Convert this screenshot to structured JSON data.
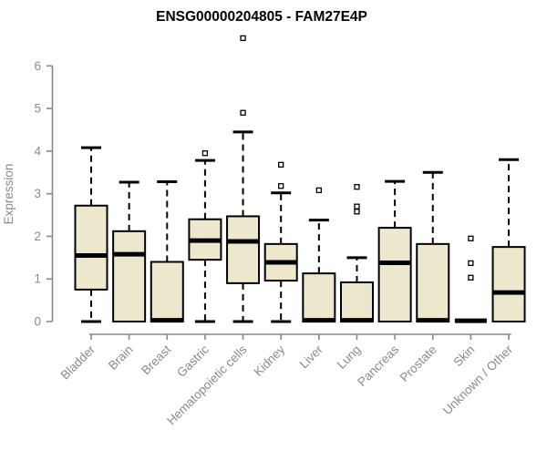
{
  "chart_data": {
    "type": "boxplot",
    "title": "ENSG00000204805 - FAM27E4P",
    "ylabel": "Expression",
    "xlabel": "",
    "ylim": [
      0,
      6
    ],
    "yticks": [
      0,
      1,
      2,
      3,
      4,
      5,
      6
    ],
    "grid": false,
    "legend": false,
    "categories": [
      "Bladder",
      "Brain",
      "Breast",
      "Gastric",
      "Hematopoietic cells",
      "Kidney",
      "Liver",
      "Lung",
      "Pancreas",
      "Prostate",
      "Skin",
      "Unknown / Other"
    ],
    "series": [
      {
        "category": "Bladder",
        "whisker_low": 0,
        "q1": 0.75,
        "median": 1.55,
        "q3": 2.72,
        "whisker_high": 4.08,
        "outliers": []
      },
      {
        "category": "Brain",
        "whisker_low": 0,
        "q1": 0,
        "median": 1.58,
        "q3": 2.12,
        "whisker_high": 3.27,
        "outliers": []
      },
      {
        "category": "Breast",
        "whisker_low": 0,
        "q1": 0,
        "median": 0.03,
        "q3": 1.4,
        "whisker_high": 3.28,
        "outliers": []
      },
      {
        "category": "Gastric",
        "whisker_low": 0,
        "q1": 1.45,
        "median": 1.9,
        "q3": 2.4,
        "whisker_high": 3.78,
        "outliers": [
          3.95
        ]
      },
      {
        "category": "Hematopoietic cells",
        "whisker_low": 0,
        "q1": 0.9,
        "median": 1.88,
        "q3": 2.47,
        "whisker_high": 4.45,
        "outliers": [
          4.9,
          6.65
        ]
      },
      {
        "category": "Kidney",
        "whisker_low": 0,
        "q1": 0.96,
        "median": 1.39,
        "q3": 1.82,
        "whisker_high": 3.02,
        "outliers": [
          3.18,
          3.68
        ]
      },
      {
        "category": "Liver",
        "whisker_low": 0,
        "q1": 0,
        "median": 0.03,
        "q3": 1.13,
        "whisker_high": 2.38,
        "outliers": [
          3.08
        ]
      },
      {
        "category": "Lung",
        "whisker_low": 0,
        "q1": 0,
        "median": 0.03,
        "q3": 0.92,
        "whisker_high": 1.5,
        "outliers": [
          2.58,
          2.7,
          3.16
        ]
      },
      {
        "category": "Pancreas",
        "whisker_low": 0,
        "q1": 0,
        "median": 1.38,
        "q3": 2.2,
        "whisker_high": 3.29,
        "outliers": []
      },
      {
        "category": "Prostate",
        "whisker_low": 0,
        "q1": 0,
        "median": 0.03,
        "q3": 1.82,
        "whisker_high": 3.5,
        "outliers": []
      },
      {
        "category": "Skin",
        "whisker_low": 0,
        "q1": 0,
        "median": 0.02,
        "q3": 0,
        "whisker_high": 0,
        "outliers": [
          1.03,
          1.37,
          1.95
        ]
      },
      {
        "category": "Unknown / Other",
        "whisker_low": 0,
        "q1": 0,
        "median": 0.68,
        "q3": 1.75,
        "whisker_high": 3.8,
        "outliers": []
      }
    ],
    "colors": {
      "box_fill": "#ede8cd",
      "box_border": "#000000",
      "median": "#000000",
      "whisker": "#000000",
      "outlier_fill": "#ffffff",
      "outlier_border": "#000000",
      "axis": "#888888",
      "tick_label": "#8a8a8a",
      "title": "#000000",
      "background": "#ffffff"
    }
  }
}
